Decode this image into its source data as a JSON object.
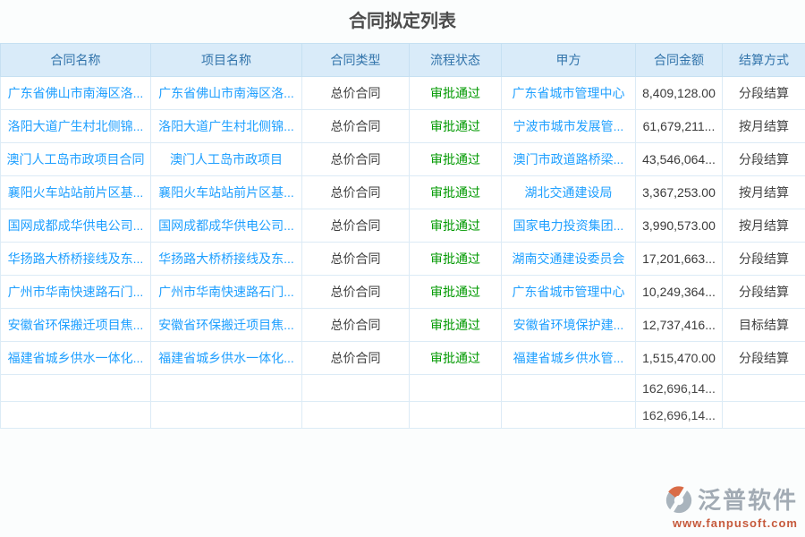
{
  "page": {
    "title": "合同拟定列表"
  },
  "table": {
    "columns": [
      {
        "key": "contract_name",
        "label": "合同名称"
      },
      {
        "key": "project_name",
        "label": "项目名称"
      },
      {
        "key": "contract_type",
        "label": "合同类型"
      },
      {
        "key": "status",
        "label": "流程状态"
      },
      {
        "key": "party_a",
        "label": "甲方"
      },
      {
        "key": "amount",
        "label": "合同金额"
      },
      {
        "key": "settlement",
        "label": "结算方式"
      }
    ],
    "rows": [
      {
        "contract_name": "广东省佛山市南海区洛...",
        "project_name": "广东省佛山市南海区洛...",
        "contract_type": "总价合同",
        "status": "审批通过",
        "party_a": "广东省城市管理中心",
        "amount": "8,409,128.00",
        "settlement": "分段结算"
      },
      {
        "contract_name": "洛阳大道广生村北侧锦...",
        "project_name": "洛阳大道广生村北侧锦...",
        "contract_type": "总价合同",
        "status": "审批通过",
        "party_a": "宁波市城市发展管...",
        "amount": "61,679,211...",
        "settlement": "按月结算"
      },
      {
        "contract_name": "澳门人工岛市政项目合同",
        "project_name": "澳门人工岛市政项目",
        "contract_type": "总价合同",
        "status": "审批通过",
        "party_a": "澳门市政道路桥梁...",
        "amount": "43,546,064...",
        "settlement": "分段结算"
      },
      {
        "contract_name": "襄阳火车站站前片区基...",
        "project_name": "襄阳火车站站前片区基...",
        "contract_type": "总价合同",
        "status": "审批通过",
        "party_a": "湖北交通建设局",
        "amount": "3,367,253.00",
        "settlement": "按月结算"
      },
      {
        "contract_name": "国网成都成华供电公司...",
        "project_name": "国网成都成华供电公司...",
        "contract_type": "总价合同",
        "status": "审批通过",
        "party_a": "国家电力投资集团...",
        "amount": "3,990,573.00",
        "settlement": "按月结算"
      },
      {
        "contract_name": "华扬路大桥桥接线及东...",
        "project_name": "华扬路大桥桥接线及东...",
        "contract_type": "总价合同",
        "status": "审批通过",
        "party_a": "湖南交通建设委员会",
        "amount": "17,201,663...",
        "settlement": "分段结算"
      },
      {
        "contract_name": "广州市华南快速路石门...",
        "project_name": "广州市华南快速路石门...",
        "contract_type": "总价合同",
        "status": "审批通过",
        "party_a": "广东省城市管理中心",
        "amount": "10,249,364...",
        "settlement": "分段结算"
      },
      {
        "contract_name": "安徽省环保搬迁项目焦...",
        "project_name": "安徽省环保搬迁项目焦...",
        "contract_type": "总价合同",
        "status": "审批通过",
        "party_a": "安徽省环境保护建...",
        "amount": "12,737,416...",
        "settlement": "目标结算"
      },
      {
        "contract_name": "福建省城乡供水一体化...",
        "project_name": "福建省城乡供水一体化...",
        "contract_type": "总价合同",
        "status": "审批通过",
        "party_a": "福建省城乡供水管...",
        "amount": "1,515,470.00",
        "settlement": "分段结算"
      }
    ],
    "summary_rows": [
      {
        "amount": "162,696,14..."
      },
      {
        "amount": "162,696,14..."
      }
    ]
  },
  "footer": {
    "brand": "泛普软件",
    "url": "www.fanpusoft.com"
  },
  "colors": {
    "header_bg": "#d9ebf9",
    "header_text": "#3274ab",
    "link_blue": "#1e9fff",
    "status_green": "#009900",
    "title_text": "#4c4c4c",
    "brand_gray": "#a2abb4",
    "brand_url_red": "#c65a3c"
  }
}
